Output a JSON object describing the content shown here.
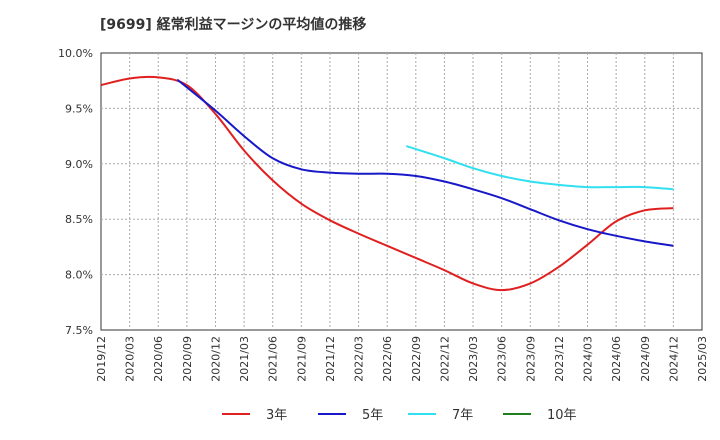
{
  "title": "[9699]  経常利益マージンの平均値の推移",
  "chart_data": {
    "type": "line",
    "title": "[9699]  経常利益マージンの平均値の推移",
    "xlabel": "",
    "ylabel": "",
    "ylim": [
      7.5,
      10.0
    ],
    "y_unit": "%",
    "y_ticks": [
      "7.5%",
      "8.0%",
      "8.5%",
      "9.0%",
      "9.5%",
      "10.0%"
    ],
    "x_ticks": [
      "2019/12",
      "2020/03",
      "2020/06",
      "2020/09",
      "2020/12",
      "2021/03",
      "2021/06",
      "2021/09",
      "2021/12",
      "2022/03",
      "2022/06",
      "2022/09",
      "2022/12",
      "2023/03",
      "2023/06",
      "2023/09",
      "2023/12",
      "2024/03",
      "2024/06",
      "2024/09",
      "2024/12",
      "2025/03"
    ],
    "grid": true,
    "legend_position": "bottom",
    "series": [
      {
        "name": "3年",
        "color": "#e02020",
        "x": [
          "2019/12",
          "2020/03",
          "2020/06",
          "2020/09",
          "2020/12",
          "2021/03",
          "2021/06",
          "2021/09",
          "2021/12",
          "2022/03",
          "2022/06",
          "2022/09",
          "2022/12",
          "2023/03",
          "2023/06",
          "2023/09",
          "2023/12",
          "2024/03",
          "2024/06",
          "2024/09",
          "2024/12"
        ],
        "values": [
          9.71,
          9.77,
          9.78,
          9.71,
          9.45,
          9.12,
          8.85,
          8.64,
          8.49,
          8.37,
          8.26,
          8.15,
          8.04,
          7.92,
          7.86,
          7.92,
          8.07,
          8.27,
          8.48,
          8.58,
          8.6
        ]
      },
      {
        "name": "5年",
        "color": "#1818c8",
        "x": [
          "2020/08",
          "2020/12",
          "2021/03",
          "2021/06",
          "2021/09",
          "2021/12",
          "2022/03",
          "2022/06",
          "2022/09",
          "2022/12",
          "2023/03",
          "2023/06",
          "2023/09",
          "2023/12",
          "2024/03",
          "2024/06",
          "2024/09",
          "2024/12"
        ],
        "values": [
          9.76,
          9.48,
          9.25,
          9.05,
          8.95,
          8.92,
          8.91,
          8.91,
          8.89,
          8.84,
          8.77,
          8.69,
          8.59,
          8.49,
          8.41,
          8.35,
          8.3,
          8.26
        ]
      },
      {
        "name": "7年",
        "color": "#30e0f0",
        "x": [
          "2022/08",
          "2022/12",
          "2023/03",
          "2023/06",
          "2023/09",
          "2023/12",
          "2024/03",
          "2024/06",
          "2024/09",
          "2024/12"
        ],
        "values": [
          9.16,
          9.05,
          8.96,
          8.89,
          8.84,
          8.81,
          8.79,
          8.79,
          8.79,
          8.77
        ]
      },
      {
        "name": "10年",
        "color": "#208020",
        "x": [],
        "values": []
      }
    ]
  }
}
